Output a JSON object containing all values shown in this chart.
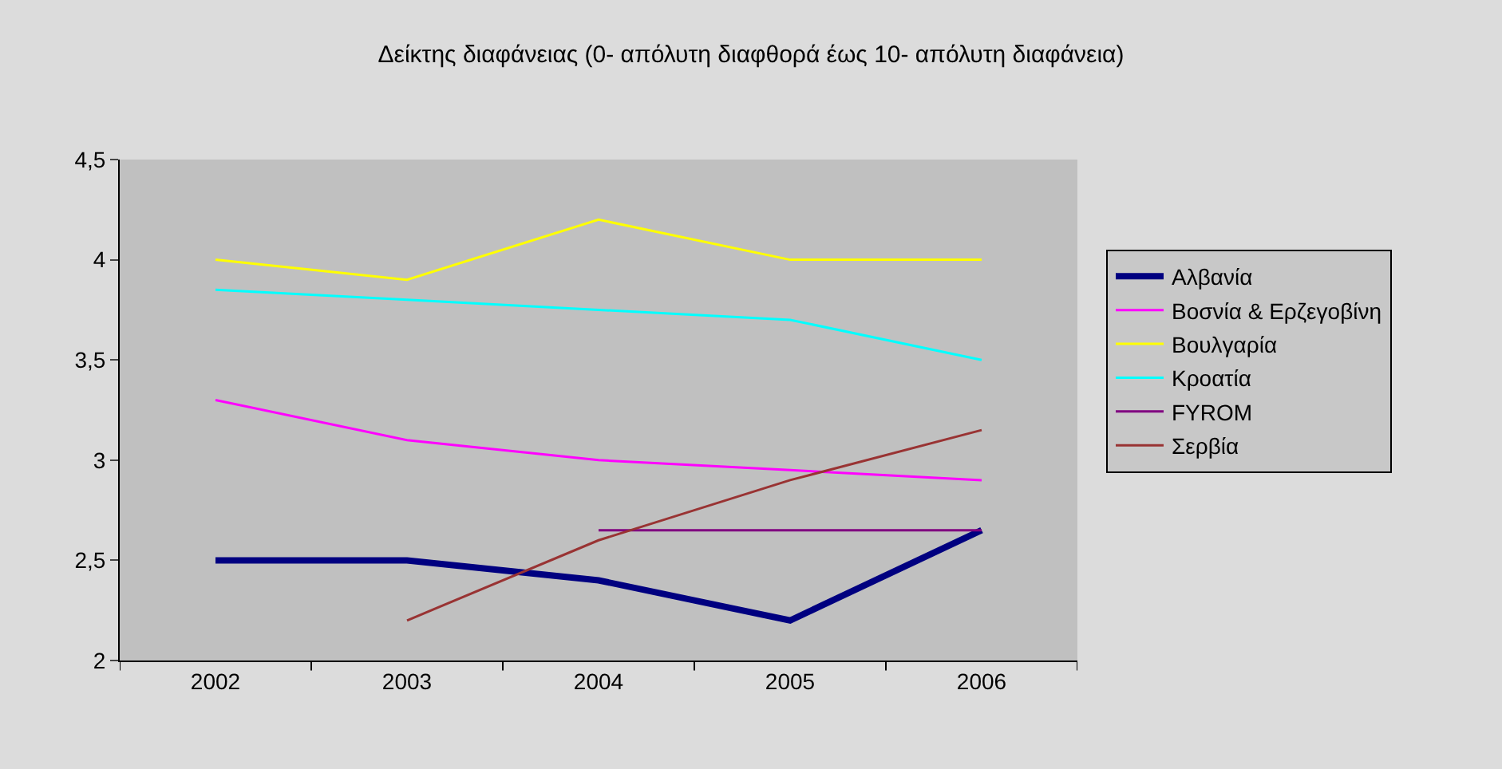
{
  "chart_data": {
    "type": "line",
    "title": "Δείκτης διαφάνειας (0- απόλυτη διαφθορά έως 10- απόλυτη διαφάνεια)",
    "categories": [
      "2002",
      "2003",
      "2004",
      "2005",
      "2006"
    ],
    "series": [
      {
        "name": "Αλβανία",
        "color": "#000080",
        "values": [
          2.5,
          2.5,
          2.4,
          2.2,
          2.65
        ]
      },
      {
        "name": "Βοσνία & Ερζεγοβίνη",
        "color": "#ff00ff",
        "values": [
          3.3,
          3.1,
          3.0,
          2.95,
          2.9
        ]
      },
      {
        "name": "Βουλγαρία",
        "color": "#ffff00",
        "values": [
          4.0,
          3.9,
          4.2,
          4.0,
          4.0
        ]
      },
      {
        "name": "Κροατία",
        "color": "#00ffff",
        "values": [
          3.85,
          3.8,
          3.75,
          3.7,
          3.5
        ]
      },
      {
        "name": "FYROM",
        "color": "#800080",
        "values": [
          null,
          null,
          2.65,
          2.65,
          2.65
        ]
      },
      {
        "name": "Σερβία",
        "color": "#993333",
        "values": [
          null,
          2.2,
          2.6,
          2.9,
          3.15
        ]
      }
    ],
    "ylim": [
      2,
      4.5
    ],
    "yticks": [
      2,
      {
        "value": 2.5,
        "label": "2,5"
      },
      3,
      {
        "value": 3.5,
        "label": "3,5"
      },
      4,
      {
        "value": 4.5,
        "label": "4,5"
      }
    ],
    "grid": false,
    "legend": "right",
    "marker": "none",
    "line_style": "solid"
  }
}
